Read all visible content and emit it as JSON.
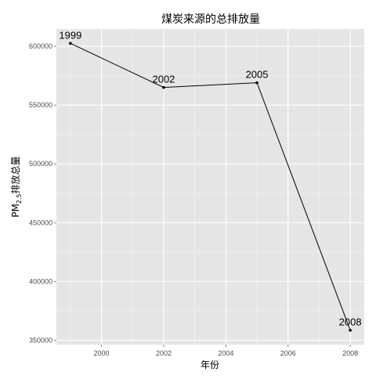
{
  "chart_data": {
    "type": "line",
    "title": "煤炭来源的总排放量",
    "xlabel": "年份",
    "ylabel": "PM2.5排放总量",
    "x": [
      1999,
      2002,
      2005,
      2008
    ],
    "point_labels": [
      "1999",
      "2002",
      "2005",
      "2008"
    ],
    "series": [
      {
        "values": [
          602500,
          565000,
          569000,
          358500
        ]
      }
    ],
    "xlim": [
      1998.55,
      2008.45
    ],
    "ylim": [
      346300,
      614700
    ],
    "xticks": [
      2000,
      2002,
      2004,
      2006,
      2008
    ],
    "xtick_labels": [
      "2000",
      "2002",
      "2004",
      "2006",
      "2008"
    ],
    "yticks": [
      350000,
      400000,
      450000,
      500000,
      550000,
      600000
    ],
    "ytick_labels": [
      "350000",
      "400000",
      "450000",
      "500000",
      "550000",
      "600000"
    ],
    "grid": true,
    "legend": false,
    "colors": {
      "panel": "#e5e5e5",
      "grid": "#ffffff",
      "line": "#000000",
      "tick_text": "#4d4d4d"
    }
  }
}
